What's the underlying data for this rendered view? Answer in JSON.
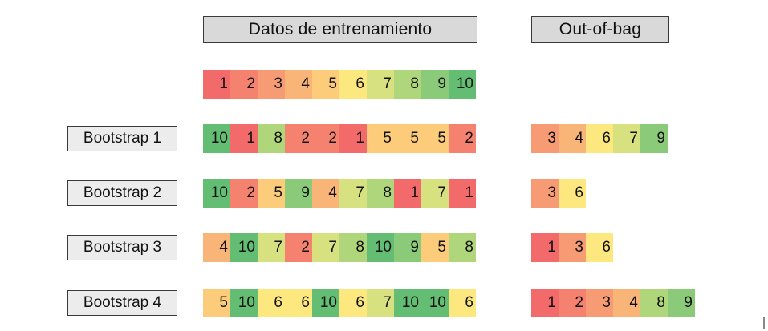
{
  "headers": {
    "training": "Datos de entrenamiento",
    "oob": "Out-of-bag"
  },
  "original": [
    "1",
    "2",
    "3",
    "4",
    "5",
    "6",
    "7",
    "8",
    "9",
    "10"
  ],
  "bootstraps": [
    {
      "label": "Bootstrap 1",
      "sample": [
        "10",
        "1",
        "8",
        "2",
        "2",
        "1",
        "5",
        "5",
        "5",
        "2"
      ],
      "oob": [
        "3",
        "4",
        "6",
        "7",
        "9"
      ]
    },
    {
      "label": "Bootstrap 2",
      "sample": [
        "10",
        "2",
        "5",
        "9",
        "4",
        "7",
        "8",
        "1",
        "7",
        "1"
      ],
      "oob": [
        "3",
        "6"
      ]
    },
    {
      "label": "Bootstrap 3",
      "sample": [
        "4",
        "10",
        "7",
        "2",
        "7",
        "8",
        "10",
        "9",
        "5",
        "8"
      ],
      "oob": [
        "1",
        "3",
        "6"
      ]
    },
    {
      "label": "Bootstrap 4",
      "sample": [
        "5",
        "10",
        "6",
        "6",
        "10",
        "6",
        "7",
        "10",
        "10",
        "6"
      ],
      "oob": [
        "1",
        "2",
        "3",
        "4",
        "8",
        "9"
      ]
    }
  ],
  "palette": {
    "1": "#f26a6a",
    "2": "#f5826f",
    "3": "#f79b74",
    "4": "#f9b477",
    "5": "#fccc7b",
    "6": "#fde880",
    "7": "#d7e17f",
    "8": "#b0d67c",
    "9": "#8aca78",
    "10": "#63be73"
  }
}
